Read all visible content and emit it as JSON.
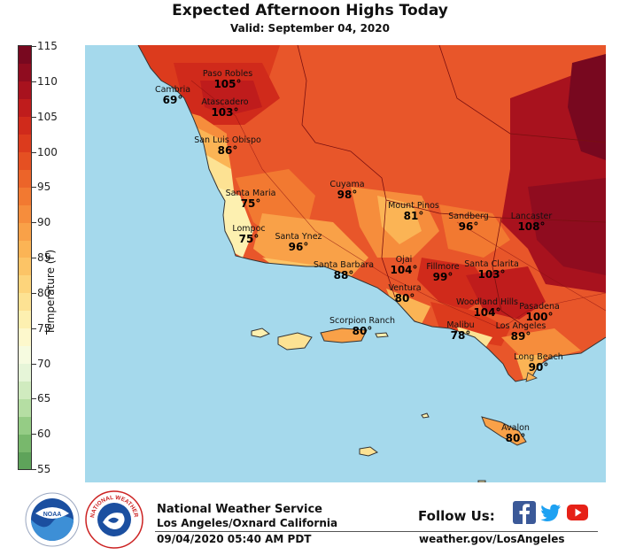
{
  "header": {
    "title": "Expected Afternoon Highs Today",
    "subtitle": "Valid: September 04, 2020"
  },
  "colorbar": {
    "title": "Temperature (F)",
    "min": 55,
    "max": 115,
    "ticks": [
      "115",
      "110",
      "105",
      "100",
      "95",
      "90",
      "85",
      "80",
      "75",
      "70",
      "65",
      "60",
      "55"
    ],
    "bands": [
      {
        "from": 55,
        "to": 57.5,
        "color": "#5ea35a"
      },
      {
        "from": 57.5,
        "to": 60,
        "color": "#78b86c"
      },
      {
        "from": 60,
        "to": 62.5,
        "color": "#95cc85"
      },
      {
        "from": 62.5,
        "to": 65,
        "color": "#b5dea3"
      },
      {
        "from": 65,
        "to": 67.5,
        "color": "#d0ebbf"
      },
      {
        "from": 67.5,
        "to": 70,
        "color": "#e6f5d8"
      },
      {
        "from": 70,
        "to": 72.5,
        "color": "#f6fbe0"
      },
      {
        "from": 72.5,
        "to": 75,
        "color": "#fdf8cc"
      },
      {
        "from": 75,
        "to": 77.5,
        "color": "#fdf0b0"
      },
      {
        "from": 77.5,
        "to": 80,
        "color": "#fde293"
      },
      {
        "from": 80,
        "to": 82.5,
        "color": "#fdd47b"
      },
      {
        "from": 82.5,
        "to": 85,
        "color": "#fcc466"
      },
      {
        "from": 85,
        "to": 87.5,
        "color": "#fbb455"
      },
      {
        "from": 87.5,
        "to": 90,
        "color": "#f9a148"
      },
      {
        "from": 90,
        "to": 92.5,
        "color": "#f68d3c"
      },
      {
        "from": 92.5,
        "to": 95,
        "color": "#f27931"
      },
      {
        "from": 95,
        "to": 97.5,
        "color": "#ec6429"
      },
      {
        "from": 97.5,
        "to": 100,
        "color": "#e55022"
      },
      {
        "from": 100,
        "to": 102.5,
        "color": "#dc3b1d"
      },
      {
        "from": 102.5,
        "to": 105,
        "color": "#d02a1b"
      },
      {
        "from": 105,
        "to": 107.5,
        "color": "#bf1c1c"
      },
      {
        "from": 107.5,
        "to": 110,
        "color": "#a8121e"
      },
      {
        "from": 110,
        "to": 112.5,
        "color": "#8f0c1f"
      },
      {
        "from": 112.5,
        "to": 115,
        "color": "#78081f"
      }
    ]
  },
  "map": {
    "ocean_color": "#a5d9ec",
    "cities": [
      {
        "name": "Paso Robles",
        "temp": "105°"
      },
      {
        "name": "Cambria",
        "temp": "69°"
      },
      {
        "name": "Atascadero",
        "temp": "103°"
      },
      {
        "name": "San Luis Obispo",
        "temp": "86°"
      },
      {
        "name": "Santa Maria",
        "temp": "75°"
      },
      {
        "name": "Lompoc",
        "temp": "75°"
      },
      {
        "name": "Santa Ynez",
        "temp": "96°"
      },
      {
        "name": "Cuyama",
        "temp": "98°"
      },
      {
        "name": "Mount Pinos",
        "temp": "81°"
      },
      {
        "name": "Sandberg",
        "temp": "96°"
      },
      {
        "name": "Lancaster",
        "temp": "108°"
      },
      {
        "name": "Santa Barbara",
        "temp": "88°"
      },
      {
        "name": "Ojai",
        "temp": "104°"
      },
      {
        "name": "Fillmore",
        "temp": "99°"
      },
      {
        "name": "Santa Clarita",
        "temp": "103°"
      },
      {
        "name": "Ventura",
        "temp": "80°"
      },
      {
        "name": "Woodland Hills",
        "temp": "104°"
      },
      {
        "name": "Pasadena",
        "temp": "100°"
      },
      {
        "name": "Scorpion Ranch",
        "temp": "80°"
      },
      {
        "name": "Malibu",
        "temp": "78°"
      },
      {
        "name": "Los Angeles",
        "temp": "89°"
      },
      {
        "name": "Long Beach",
        "temp": "90°"
      },
      {
        "name": "Avalon",
        "temp": "80°"
      }
    ]
  },
  "footer": {
    "nws_name": "National Weather Service",
    "office": "Los Angeles/Oxnard California",
    "issued": "09/04/2020 05:40 AM PDT",
    "follow": "Follow Us:",
    "website": "weather.gov/LosAngeles",
    "noaa_text": "NOAA",
    "nws_ring_text": "NATIONAL WEATHER SERVICE",
    "social": [
      "facebook-icon",
      "twitter-icon",
      "youtube-icon"
    ],
    "colors": {
      "facebook": "#3b5998",
      "twitter": "#1da1f2",
      "youtube": "#e62117",
      "noaa_blue": "#1b4fa0"
    }
  }
}
